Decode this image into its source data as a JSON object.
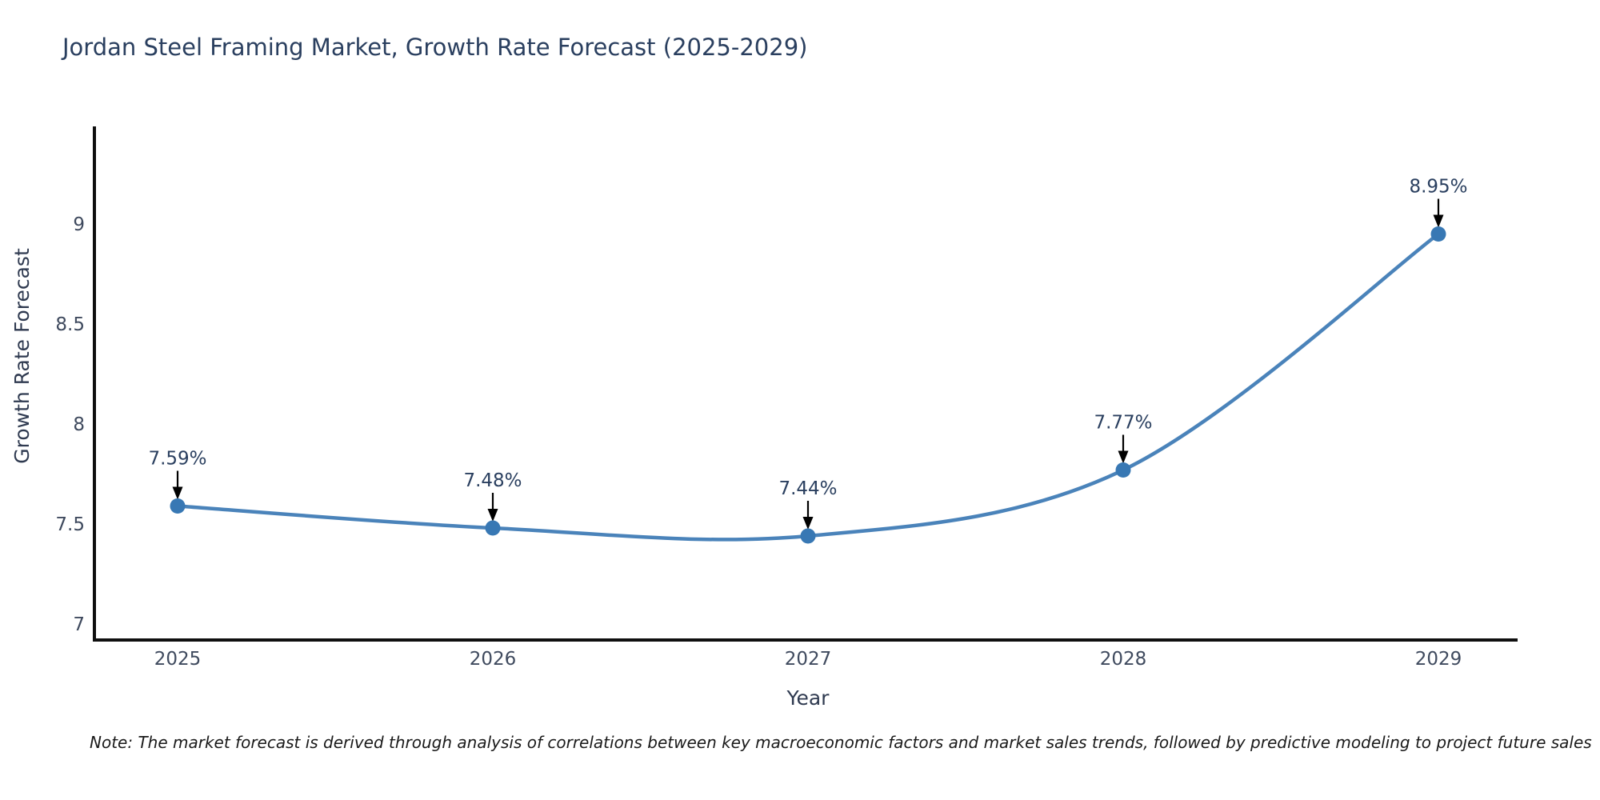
{
  "title": "Jordan Steel Framing Market, Growth Rate Forecast (2025-2029)",
  "note": "Note: The market forecast is derived through analysis of correlations between key macroeconomic factors and market sales trends, followed by predictive modeling to project future sales",
  "chart_data": {
    "type": "line",
    "title": "Jordan Steel Framing Market, Growth Rate Forecast (2025-2029)",
    "xlabel": "Year",
    "ylabel": "Growth Rate Forecast",
    "categories": [
      "2025",
      "2026",
      "2027",
      "2028",
      "2029"
    ],
    "series": [
      {
        "name": "Growth Rate Forecast",
        "values": [
          7.59,
          7.48,
          7.44,
          7.77,
          8.95
        ]
      }
    ],
    "point_labels": [
      "7.59%",
      "7.48%",
      "7.44%",
      "7.77%",
      "8.95%"
    ],
    "yticks": [
      7,
      7.5,
      8,
      8.5,
      9
    ],
    "ylim": [
      6.92,
      9.57
    ],
    "grid": false,
    "legend": "none",
    "line_shape": "spline",
    "annotation_arrows": true
  },
  "colors": {
    "line": "#4a83ba",
    "marker": "#3878b4",
    "axis": "#0f0f0f",
    "tick_label": "#3f4a5e",
    "annotation_text": "#2a3f5f",
    "arrow": "#000000",
    "title": "#2a3f5f",
    "background": "#ffffff"
  }
}
